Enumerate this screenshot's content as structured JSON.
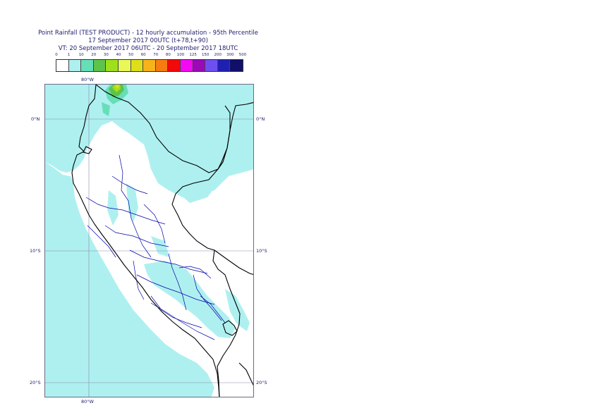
{
  "title": {
    "line1": "Point Rainfall (TEST PRODUCT) - 12 hourly accumulation - 95th Percentile",
    "line2": "17 September 2017 00UTC (t+78,t+90)",
    "line3": "VT: 20 September 2017 06UTC - 20 September 2017 18UTC"
  },
  "legend": {
    "ticks": [
      "0",
      "1",
      "10",
      "20",
      "30",
      "40",
      "50",
      "60",
      "70",
      "80",
      "100",
      "125",
      "150",
      "200",
      "300",
      "500"
    ],
    "colors": [
      "#ffffff",
      "#aef0ef",
      "#66dfb8",
      "#5ec34a",
      "#9ee01c",
      "#e8f858",
      "#dede1a",
      "#f6b41a",
      "#f67c12",
      "#f20a0a",
      "#f20af2",
      "#9a0ab6",
      "#6e50f0",
      "#2020b0",
      "#10106a"
    ]
  },
  "axes": {
    "lon_top": "80°W",
    "lon_bottom": "80°W",
    "lat_right": [
      "0°N",
      "10°S",
      "20°S"
    ],
    "lat_left": [
      "0°N",
      "10°S",
      "20°S"
    ]
  },
  "map": {
    "rain_color": "#aef0ef",
    "rain_color_mid": "#66dfb8",
    "rain_color_high": "#5ec34a",
    "rain_color_peak": "#9ee01c",
    "rain_color_max": "#dede1a",
    "coast_color": "#000000",
    "border_color": "#0000aa",
    "grid_color": "#8888aa"
  }
}
